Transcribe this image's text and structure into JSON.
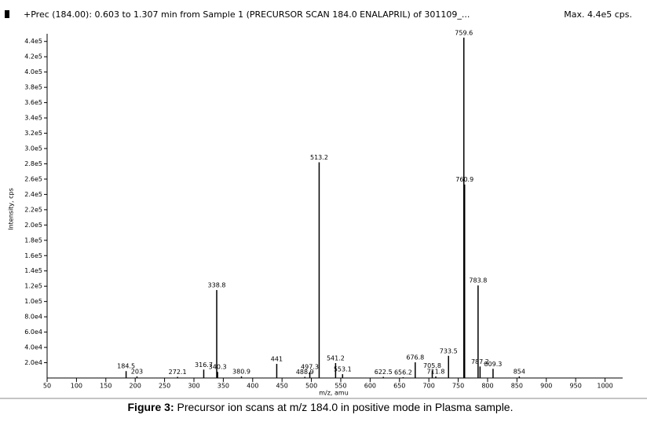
{
  "header": {
    "title": "+Prec (184.00): 0.603 to 1.307 min from Sample 1 (PRECURSOR SCAN 184.0 ENALAPRIL) of 301109_...",
    "max_label": "Max. 4.4e5 cps."
  },
  "chart_data": {
    "type": "spectrum",
    "y_label": "Intensity, cps",
    "x_label": "m/z, amu",
    "x": [
      184.5,
      203.0,
      272.1,
      316.7,
      338.8,
      340.3,
      380.9,
      441.0,
      488.9,
      497.3,
      513.2,
      541.2,
      553.1,
      622.5,
      656.2,
      676.8,
      705.8,
      711.8,
      733.5,
      759.6,
      760.9,
      783.8,
      787.2,
      809.3,
      854.0
    ],
    "values": [
      9000,
      2000,
      1500,
      11000,
      115000,
      8000,
      2000,
      18500,
      1500,
      8000,
      282000,
      19500,
      5000,
      1500,
      1000,
      20500,
      10000,
      2000,
      29000,
      445000,
      253000,
      121000,
      15000,
      12000,
      2000
    ],
    "color": "#000000",
    "xlim": [
      50,
      1030
    ],
    "ylim": [
      0,
      450000
    ],
    "xticks": [
      50,
      100,
      150,
      200,
      250,
      300,
      350,
      400,
      450,
      500,
      550,
      600,
      650,
      700,
      750,
      800,
      850,
      900,
      950,
      1000
    ],
    "yticks": [
      {
        "value": 20000,
        "label": "2.0e4"
      },
      {
        "value": 40000,
        "label": "4.0e4"
      },
      {
        "value": 60000,
        "label": "6.0e4"
      },
      {
        "value": 80000,
        "label": "8.0e4"
      },
      {
        "value": 100000,
        "label": "1.0e5"
      },
      {
        "value": 120000,
        "label": "1.2e5"
      },
      {
        "value": 140000,
        "label": "1.4e5"
      },
      {
        "value": 160000,
        "label": "1.6e5"
      },
      {
        "value": 180000,
        "label": "1.8e5"
      },
      {
        "value": 200000,
        "label": "2.0e5"
      },
      {
        "value": 220000,
        "label": "2.2e5"
      },
      {
        "value": 240000,
        "label": "2.4e5"
      },
      {
        "value": 260000,
        "label": "2.6e5"
      },
      {
        "value": 280000,
        "label": "2.8e5"
      },
      {
        "value": 300000,
        "label": "3.0e5"
      },
      {
        "value": 320000,
        "label": "3.2e5"
      },
      {
        "value": 340000,
        "label": "3.4e5"
      },
      {
        "value": 360000,
        "label": "3.6e5"
      },
      {
        "value": 380000,
        "label": "3.8e5"
      },
      {
        "value": 400000,
        "label": "4.0e5"
      },
      {
        "value": 420000,
        "label": "4.2e5"
      },
      {
        "value": 440000,
        "label": "4.4e5"
      }
    ],
    "grid": false
  },
  "caption": {
    "label": "Figure 3:",
    "text": "Precursor ion scans at m/z 184.0 in positive mode in Plasma sample."
  }
}
